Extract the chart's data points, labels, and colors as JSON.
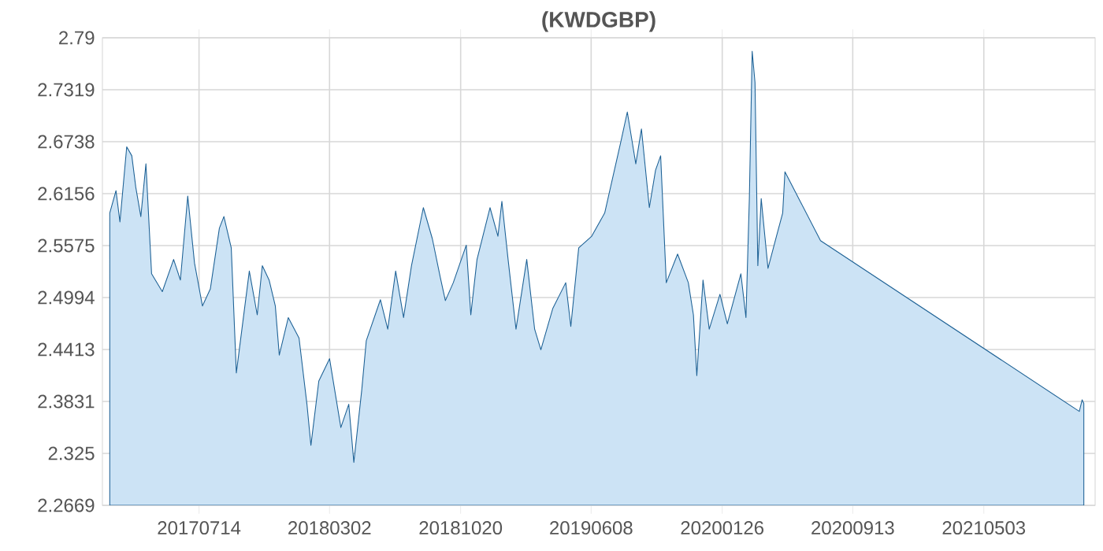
{
  "chart_data": {
    "type": "area",
    "title": "(KWDGBP)",
    "x": [
      "2017-02-06",
      "2017-02-17",
      "2017-02-24",
      "2017-03-08",
      "2017-03-17",
      "2017-03-24",
      "2017-04-02",
      "2017-04-11",
      "2017-04-21",
      "2017-05-10",
      "2017-05-30",
      "2017-06-11",
      "2017-06-24",
      "2017-07-06",
      "2017-07-20",
      "2017-08-03",
      "2017-08-19",
      "2017-08-27",
      "2017-09-09",
      "2017-09-18",
      "2017-10-11",
      "2017-10-25",
      "2017-11-03",
      "2017-11-15",
      "2017-11-26",
      "2017-12-03",
      "2017-12-19",
      "2018-01-07",
      "2018-01-21",
      "2018-01-28",
      "2018-02-11",
      "2018-03-02",
      "2018-03-22",
      "2018-04-05",
      "2018-04-14",
      "2018-04-28",
      "2018-05-06",
      "2018-05-31",
      "2018-06-13",
      "2018-06-27",
      "2018-07-11",
      "2018-07-25",
      "2018-08-15",
      "2018-08-31",
      "2018-09-14",
      "2018-09-23",
      "2018-10-07",
      "2018-10-30",
      "2018-11-07",
      "2018-11-18",
      "2018-12-11",
      "2018-12-25",
      "2019-01-01",
      "2019-01-12",
      "2019-01-26",
      "2019-02-14",
      "2019-02-28",
      "2019-03-11",
      "2019-04-01",
      "2019-04-24",
      "2019-05-03",
      "2019-05-17",
      "2019-06-09",
      "2019-07-02",
      "2019-07-31",
      "2019-08-11",
      "2019-08-26",
      "2019-09-05",
      "2019-09-19",
      "2019-09-30",
      "2019-10-09",
      "2019-10-19",
      "2019-11-08",
      "2019-11-27",
      "2019-12-06",
      "2019-12-12",
      "2019-12-23",
      "2020-01-03",
      "2020-01-22",
      "2020-02-04",
      "2020-02-28",
      "2020-03-08",
      "2020-03-14",
      "2020-03-19",
      "2020-03-24",
      "2020-03-29",
      "2020-04-04",
      "2020-04-16",
      "2020-05-01",
      "2020-05-12",
      "2020-05-16",
      "2020-07-18",
      "2021-10-19",
      "2021-10-24",
      "2021-10-27"
    ],
    "series": [
      {
        "color": "#cce3f5",
        "values": [
          2.594,
          2.619,
          2.584,
          2.668,
          2.658,
          2.623,
          2.59,
          2.649,
          2.526,
          2.506,
          2.542,
          2.519,
          2.613,
          2.538,
          2.49,
          2.509,
          2.577,
          2.59,
          2.555,
          2.415,
          2.529,
          2.48,
          2.535,
          2.519,
          2.49,
          2.435,
          2.477,
          2.454,
          2.38,
          2.334,
          2.406,
          2.431,
          2.354,
          2.38,
          2.315,
          2.396,
          2.451,
          2.497,
          2.464,
          2.529,
          2.477,
          2.535,
          2.6,
          2.565,
          2.522,
          2.496,
          2.516,
          2.558,
          2.48,
          2.542,
          2.6,
          2.568,
          2.607,
          2.542,
          2.464,
          2.542,
          2.464,
          2.441,
          2.487,
          2.516,
          2.467,
          2.555,
          2.568,
          2.594,
          2.675,
          2.707,
          2.649,
          2.688,
          2.6,
          2.642,
          2.658,
          2.516,
          2.548,
          2.516,
          2.48,
          2.412,
          2.519,
          2.464,
          2.503,
          2.47,
          2.526,
          2.477,
          2.61,
          2.775,
          2.74,
          2.535,
          2.61,
          2.532,
          2.568,
          2.594,
          2.64,
          2.563,
          2.372,
          2.385,
          2.381
        ]
      }
    ],
    "xlim": [
      "2017-01-24",
      "2021-11-16"
    ],
    "xticks": [
      {
        "value": "2017-07-14",
        "label": "20170714"
      },
      {
        "value": "2018-03-02",
        "label": "20180302"
      },
      {
        "value": "2018-10-20",
        "label": "20181020"
      },
      {
        "value": "2019-06-08",
        "label": "20190608"
      },
      {
        "value": "2020-01-26",
        "label": "20200126"
      },
      {
        "value": "2020-09-13",
        "label": "20200913"
      },
      {
        "value": "2021-05-03",
        "label": "20210503"
      }
    ],
    "ylim": [
      2.2669,
      2.79
    ],
    "yticks": [
      2.2669,
      2.325,
      2.3831,
      2.4413,
      2.4994,
      2.5575,
      2.6156,
      2.6738,
      2.7319,
      2.79
    ],
    "grid": true
  }
}
